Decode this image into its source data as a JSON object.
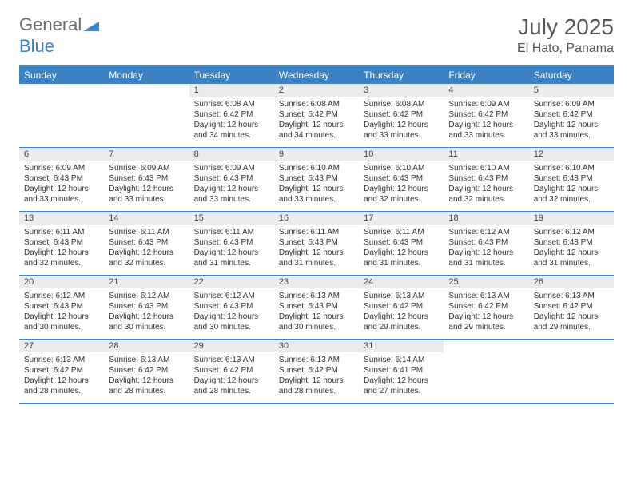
{
  "logo": {
    "text1": "General",
    "text2": "Blue"
  },
  "title": "July 2025",
  "location": "El Hato, Panama",
  "colors": {
    "accent": "#3b82c4",
    "daynum_bg": "#ececec",
    "text": "#333333",
    "header_text": "#555555"
  },
  "day_headers": [
    "Sunday",
    "Monday",
    "Tuesday",
    "Wednesday",
    "Thursday",
    "Friday",
    "Saturday"
  ],
  "weeks": [
    [
      null,
      null,
      {
        "n": "1",
        "sr": "Sunrise: 6:08 AM",
        "ss": "Sunset: 6:42 PM",
        "d1": "Daylight: 12 hours",
        "d2": "and 34 minutes."
      },
      {
        "n": "2",
        "sr": "Sunrise: 6:08 AM",
        "ss": "Sunset: 6:42 PM",
        "d1": "Daylight: 12 hours",
        "d2": "and 34 minutes."
      },
      {
        "n": "3",
        "sr": "Sunrise: 6:08 AM",
        "ss": "Sunset: 6:42 PM",
        "d1": "Daylight: 12 hours",
        "d2": "and 33 minutes."
      },
      {
        "n": "4",
        "sr": "Sunrise: 6:09 AM",
        "ss": "Sunset: 6:42 PM",
        "d1": "Daylight: 12 hours",
        "d2": "and 33 minutes."
      },
      {
        "n": "5",
        "sr": "Sunrise: 6:09 AM",
        "ss": "Sunset: 6:42 PM",
        "d1": "Daylight: 12 hours",
        "d2": "and 33 minutes."
      }
    ],
    [
      {
        "n": "6",
        "sr": "Sunrise: 6:09 AM",
        "ss": "Sunset: 6:43 PM",
        "d1": "Daylight: 12 hours",
        "d2": "and 33 minutes."
      },
      {
        "n": "7",
        "sr": "Sunrise: 6:09 AM",
        "ss": "Sunset: 6:43 PM",
        "d1": "Daylight: 12 hours",
        "d2": "and 33 minutes."
      },
      {
        "n": "8",
        "sr": "Sunrise: 6:09 AM",
        "ss": "Sunset: 6:43 PM",
        "d1": "Daylight: 12 hours",
        "d2": "and 33 minutes."
      },
      {
        "n": "9",
        "sr": "Sunrise: 6:10 AM",
        "ss": "Sunset: 6:43 PM",
        "d1": "Daylight: 12 hours",
        "d2": "and 33 minutes."
      },
      {
        "n": "10",
        "sr": "Sunrise: 6:10 AM",
        "ss": "Sunset: 6:43 PM",
        "d1": "Daylight: 12 hours",
        "d2": "and 32 minutes."
      },
      {
        "n": "11",
        "sr": "Sunrise: 6:10 AM",
        "ss": "Sunset: 6:43 PM",
        "d1": "Daylight: 12 hours",
        "d2": "and 32 minutes."
      },
      {
        "n": "12",
        "sr": "Sunrise: 6:10 AM",
        "ss": "Sunset: 6:43 PM",
        "d1": "Daylight: 12 hours",
        "d2": "and 32 minutes."
      }
    ],
    [
      {
        "n": "13",
        "sr": "Sunrise: 6:11 AM",
        "ss": "Sunset: 6:43 PM",
        "d1": "Daylight: 12 hours",
        "d2": "and 32 minutes."
      },
      {
        "n": "14",
        "sr": "Sunrise: 6:11 AM",
        "ss": "Sunset: 6:43 PM",
        "d1": "Daylight: 12 hours",
        "d2": "and 32 minutes."
      },
      {
        "n": "15",
        "sr": "Sunrise: 6:11 AM",
        "ss": "Sunset: 6:43 PM",
        "d1": "Daylight: 12 hours",
        "d2": "and 31 minutes."
      },
      {
        "n": "16",
        "sr": "Sunrise: 6:11 AM",
        "ss": "Sunset: 6:43 PM",
        "d1": "Daylight: 12 hours",
        "d2": "and 31 minutes."
      },
      {
        "n": "17",
        "sr": "Sunrise: 6:11 AM",
        "ss": "Sunset: 6:43 PM",
        "d1": "Daylight: 12 hours",
        "d2": "and 31 minutes."
      },
      {
        "n": "18",
        "sr": "Sunrise: 6:12 AM",
        "ss": "Sunset: 6:43 PM",
        "d1": "Daylight: 12 hours",
        "d2": "and 31 minutes."
      },
      {
        "n": "19",
        "sr": "Sunrise: 6:12 AM",
        "ss": "Sunset: 6:43 PM",
        "d1": "Daylight: 12 hours",
        "d2": "and 31 minutes."
      }
    ],
    [
      {
        "n": "20",
        "sr": "Sunrise: 6:12 AM",
        "ss": "Sunset: 6:43 PM",
        "d1": "Daylight: 12 hours",
        "d2": "and 30 minutes."
      },
      {
        "n": "21",
        "sr": "Sunrise: 6:12 AM",
        "ss": "Sunset: 6:43 PM",
        "d1": "Daylight: 12 hours",
        "d2": "and 30 minutes."
      },
      {
        "n": "22",
        "sr": "Sunrise: 6:12 AM",
        "ss": "Sunset: 6:43 PM",
        "d1": "Daylight: 12 hours",
        "d2": "and 30 minutes."
      },
      {
        "n": "23",
        "sr": "Sunrise: 6:13 AM",
        "ss": "Sunset: 6:43 PM",
        "d1": "Daylight: 12 hours",
        "d2": "and 30 minutes."
      },
      {
        "n": "24",
        "sr": "Sunrise: 6:13 AM",
        "ss": "Sunset: 6:42 PM",
        "d1": "Daylight: 12 hours",
        "d2": "and 29 minutes."
      },
      {
        "n": "25",
        "sr": "Sunrise: 6:13 AM",
        "ss": "Sunset: 6:42 PM",
        "d1": "Daylight: 12 hours",
        "d2": "and 29 minutes."
      },
      {
        "n": "26",
        "sr": "Sunrise: 6:13 AM",
        "ss": "Sunset: 6:42 PM",
        "d1": "Daylight: 12 hours",
        "d2": "and 29 minutes."
      }
    ],
    [
      {
        "n": "27",
        "sr": "Sunrise: 6:13 AM",
        "ss": "Sunset: 6:42 PM",
        "d1": "Daylight: 12 hours",
        "d2": "and 28 minutes."
      },
      {
        "n": "28",
        "sr": "Sunrise: 6:13 AM",
        "ss": "Sunset: 6:42 PM",
        "d1": "Daylight: 12 hours",
        "d2": "and 28 minutes."
      },
      {
        "n": "29",
        "sr": "Sunrise: 6:13 AM",
        "ss": "Sunset: 6:42 PM",
        "d1": "Daylight: 12 hours",
        "d2": "and 28 minutes."
      },
      {
        "n": "30",
        "sr": "Sunrise: 6:13 AM",
        "ss": "Sunset: 6:42 PM",
        "d1": "Daylight: 12 hours",
        "d2": "and 28 minutes."
      },
      {
        "n": "31",
        "sr": "Sunrise: 6:14 AM",
        "ss": "Sunset: 6:41 PM",
        "d1": "Daylight: 12 hours",
        "d2": "and 27 minutes."
      },
      null,
      null
    ]
  ]
}
